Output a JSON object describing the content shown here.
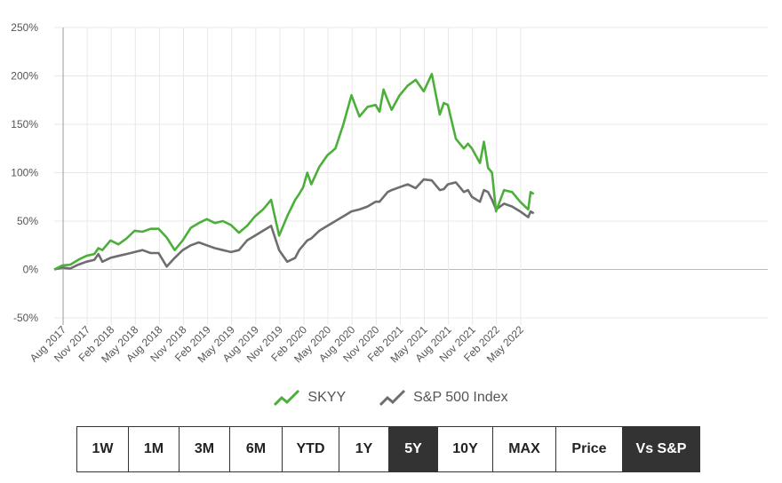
{
  "chart_data": {
    "type": "line",
    "title": "",
    "xlabel": "",
    "ylabel": "",
    "ylim": [
      -50,
      250
    ],
    "y_ticks": [
      "250%",
      "200%",
      "150%",
      "100%",
      "50%",
      "0%",
      "-50%"
    ],
    "x_ticks": [
      "Aug 2017",
      "Nov 2017",
      "Feb 2018",
      "May 2018",
      "Aug 2018",
      "Nov 2018",
      "Feb 2019",
      "May 2019",
      "Aug 2019",
      "Nov 2019",
      "Feb 2020",
      "May 2020",
      "Aug 2020",
      "Nov 2020",
      "Feb 2021",
      "May 2021",
      "Aug 2021",
      "Nov 2021",
      "Feb 2022",
      "May 2022"
    ],
    "grid": true,
    "legend_position": "bottom",
    "x_months": [
      0,
      1,
      2,
      3,
      4,
      5,
      5.5,
      6,
      7,
      8,
      9,
      10,
      11,
      12,
      13,
      14,
      15,
      16,
      17,
      18,
      19,
      20,
      21,
      22,
      23,
      24,
      25,
      26,
      27,
      28,
      29,
      30,
      30.5,
      31,
      31.5,
      32,
      33,
      34,
      35,
      36,
      37,
      38,
      39,
      40,
      40.5,
      41,
      41.5,
      42,
      43,
      44,
      45,
      46,
      47,
      48,
      48.5,
      49,
      50,
      51,
      51.5,
      52,
      53,
      53.5,
      54,
      54.5,
      55,
      56,
      57,
      58,
      59,
      59.3,
      59.7
    ],
    "series": [
      {
        "name": "SKYY",
        "color": "#4caf3a",
        "values": [
          0,
          4,
          5,
          10,
          14,
          16,
          22,
          20,
          30,
          26,
          32,
          40,
          39,
          42,
          42,
          33,
          20,
          30,
          43,
          48,
          52,
          48,
          50,
          46,
          38,
          45,
          55,
          62,
          72,
          35,
          55,
          72,
          78,
          85,
          100,
          88,
          106,
          118,
          125,
          150,
          180,
          158,
          168,
          170,
          163,
          186,
          175,
          165,
          180,
          190,
          196,
          184,
          202,
          160,
          172,
          170,
          135,
          125,
          130,
          125,
          110,
          132,
          105,
          100,
          60,
          82,
          80,
          70,
          62,
          80,
          78
        ]
      },
      {
        "name": "S&P 500 Index",
        "color": "#6e6e6e",
        "values": [
          0,
          2,
          1,
          5,
          8,
          10,
          16,
          8,
          12,
          14,
          16,
          18,
          20,
          17,
          17,
          3,
          12,
          20,
          25,
          28,
          25,
          22,
          20,
          18,
          20,
          30,
          35,
          40,
          45,
          20,
          8,
          12,
          20,
          25,
          30,
          32,
          40,
          45,
          50,
          55,
          60,
          62,
          65,
          70,
          70,
          75,
          80,
          82,
          85,
          88,
          84,
          93,
          92,
          82,
          83,
          88,
          90,
          80,
          82,
          75,
          70,
          82,
          80,
          72,
          62,
          68,
          65,
          60,
          54,
          60,
          58
        ]
      }
    ]
  },
  "legend": {
    "items": [
      {
        "label": "SKYY",
        "icon": "green-line-icon"
      },
      {
        "label": "S&P 500 Index",
        "icon": "gray-line-icon"
      }
    ]
  },
  "range_buttons": {
    "items": [
      {
        "label": "1W"
      },
      {
        "label": "1M"
      },
      {
        "label": "3M"
      },
      {
        "label": "6M"
      },
      {
        "label": "YTD"
      },
      {
        "label": "1Y"
      },
      {
        "label": "5Y",
        "active": true
      },
      {
        "label": "10Y"
      },
      {
        "label": "MAX"
      },
      {
        "label": "Price"
      },
      {
        "label": "Vs S&P",
        "active": true
      }
    ]
  }
}
